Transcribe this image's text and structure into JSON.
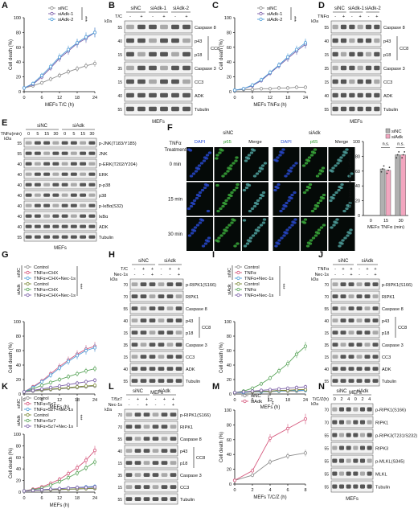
{
  "panels": [
    {
      "id": "A",
      "letter": "A",
      "kind": "line",
      "xlabel": "MEFs T/C (h)",
      "ylabel": "Cell death (%)",
      "legend": [
        "siNC",
        "siAdk-1",
        "siAdk-2"
      ],
      "sig": "***"
    },
    {
      "id": "B",
      "letter": "B",
      "kind": "blot",
      "sample": "MEFs",
      "treat_row": "T/C",
      "groups": [
        "siNC",
        "siAdk-1",
        "siAdk-2"
      ],
      "signs": [
        "-",
        "+",
        "-",
        "+",
        "-",
        "+"
      ],
      "bands": [
        "Caspase 8",
        "p43",
        "p18",
        "Caspase 3",
        "CC3",
        "ADK",
        "Tubulin"
      ],
      "bracket": "CC8",
      "kda": [
        "55",
        "40",
        "15",
        "35",
        "15",
        "40",
        "55"
      ]
    },
    {
      "id": "C",
      "letter": "C",
      "kind": "line",
      "xlabel": "MEFs TNFα (h)",
      "ylabel": "Cell death (%)",
      "legend": [
        "siNC",
        "siAdk-1",
        "siAdk-2"
      ],
      "sig": "***"
    },
    {
      "id": "D",
      "letter": "D",
      "kind": "blot",
      "sample": "MEFs",
      "treat_row": "TNFα",
      "groups": [
        "siNC",
        "siAdk-1",
        "siAdk-2"
      ],
      "signs": [
        "-",
        "+",
        "-",
        "+",
        "-",
        "+"
      ],
      "bands": [
        "Caspase 8",
        "p43",
        "p18",
        "Caspase 3",
        "CC3",
        "ADK",
        "Tubulin"
      ],
      "bracket": "CC8",
      "kda": [
        "55",
        "40",
        "15",
        "35",
        "15",
        "40",
        "55"
      ]
    },
    {
      "id": "E",
      "letter": "E",
      "kind": "blot",
      "sample": "MEFs",
      "treat_row": "TNFα(min)",
      "groups": [
        "siNC",
        "siAdk"
      ],
      "signs": [
        "0",
        "5",
        "15",
        "30",
        "0",
        "5",
        "15",
        "30"
      ],
      "bands": [
        "p-JNK(T183/Y185)",
        "JNK",
        "p-ERK(T202/Y204)",
        "ERK",
        "p-p38",
        "p38",
        "p-IκBα(S32)",
        "IκBα",
        "ADK",
        "Tubulin"
      ],
      "kda": [
        "55",
        "55",
        "40",
        "40",
        "40",
        "40",
        "40",
        "40",
        "40",
        "55"
      ]
    },
    {
      "id": "F",
      "letter": "F",
      "kind": "micro",
      "sample": "MEFs TNFα (min)",
      "treat": "TNFα Treatment",
      "groups": [
        "siNC",
        "siAdk"
      ],
      "channels": [
        "DAPI",
        "p65",
        "Merge"
      ],
      "rows": [
        "0 min",
        "15 min",
        "30 min"
      ],
      "bar_ylabel": "p65 translocation (% of cells)",
      "bar_legend": [
        "siNC",
        "siAdk"
      ],
      "bar_x": [
        "0",
        "15",
        "30"
      ],
      "ns": "n.s."
    },
    {
      "id": "G",
      "letter": "G",
      "kind": "line",
      "xlabel": "MEFs (h)",
      "ylabel": "Cell death (%)",
      "legend": [
        "Control",
        "TNFα+CHX",
        "TNFα+CHX+Nec-1s",
        "Control",
        "TNFα+CHX",
        "TNFα+CHX+Nec-1s"
      ],
      "groups": [
        "siNC",
        "siAdk"
      ],
      "sig": "***"
    },
    {
      "id": "H",
      "letter": "H",
      "kind": "blot",
      "sample": "MEFs",
      "treat_rows": [
        "T/C",
        "Nec-1s"
      ],
      "groups": [
        "siNC",
        "siAdk"
      ],
      "signs": [
        "-",
        "+",
        "+",
        "-",
        "+",
        "+"
      ],
      "signs2": [
        "-",
        "-",
        "+",
        "-",
        "-",
        "+"
      ],
      "bands": [
        "p-RIPK1(S166)",
        "RIPK1",
        "Caspase 8",
        "p43",
        "p18",
        "Caspase 3",
        "CC3",
        "ADK",
        "Tubulin"
      ],
      "bracket": "CC8",
      "kda": [
        "70",
        "70",
        "55",
        "40",
        "15",
        "35",
        "15",
        "40",
        "55"
      ]
    },
    {
      "id": "I",
      "letter": "I",
      "kind": "line",
      "xlabel": "MEFs (h)",
      "ylabel": "Cell death (%)",
      "legend": [
        "Control",
        "TNFα",
        "TNFα+Nec-1s",
        "Control",
        "TNFα",
        "TNFα+Nec-1s"
      ],
      "groups": [
        "siNC",
        "siAdk"
      ],
      "sig": "***"
    },
    {
      "id": "J",
      "letter": "J",
      "kind": "blot",
      "sample": "MEFs",
      "treat_rows": [
        "TNFα",
        "Nec-1s"
      ],
      "groups": [
        "siNC",
        "siAdk"
      ],
      "signs": [
        "-",
        "+",
        "+",
        "-",
        "+",
        "+"
      ],
      "signs2": [
        "-",
        "-",
        "+",
        "-",
        "-",
        "+"
      ],
      "bands": [
        "p-RIPK1(S166)",
        "RIPK1",
        "Caspase 8",
        "p43",
        "p18",
        "Caspase 3",
        "CC3",
        "ADK",
        "Tubulin"
      ],
      "bracket": "CC8",
      "kda": [
        "70",
        "70",
        "55",
        "40",
        "15",
        "35",
        "15",
        "40",
        "55"
      ]
    },
    {
      "id": "K",
      "letter": "K",
      "kind": "line",
      "xlabel": "MEFs (h)",
      "ylabel": "Cell death (%)",
      "legend": [
        "Control",
        "TNFα+5z7",
        "TNFα+5z7+Nec-1s",
        "Control",
        "TNFα+5z7",
        "TNFα+5z7+Nec-1s"
      ],
      "groups": [
        "siNC",
        "siAdk"
      ],
      "sig": "***"
    },
    {
      "id": "L",
      "letter": "L",
      "kind": "blot",
      "sample": "MEFs",
      "treat_rows": [
        "T/5z7",
        "Nec-1s"
      ],
      "groups": [
        "siNC",
        "siAdk"
      ],
      "signs": [
        "-",
        "+",
        "+",
        "-",
        "+",
        "+"
      ],
      "signs2": [
        "-",
        "-",
        "+",
        "-",
        "-",
        "+"
      ],
      "bands": [
        "p-RIPK1(S166)",
        "RIPK1",
        "Caspase 8",
        "p43",
        "p18",
        "Caspase 3",
        "CC3",
        "Tubulin"
      ],
      "bracket": "CC8",
      "kda": [
        "70",
        "70",
        "55",
        "40",
        "15",
        "35",
        "15",
        "55"
      ]
    },
    {
      "id": "M",
      "letter": "M",
      "kind": "line",
      "xlabel": "MEFs T/C/Z (h)",
      "ylabel": "Cell death (%)",
      "legend": [
        "siNC",
        "siAdk"
      ],
      "sig": "**"
    },
    {
      "id": "N",
      "letter": "N",
      "kind": "blot",
      "sample": "MEFs",
      "treat_row": "T/C/Z(h)",
      "groups": [
        "siNC",
        "siAdk"
      ],
      "signs": [
        "0",
        "2",
        "4",
        "0",
        "2",
        "4"
      ],
      "bands": [
        "p-RIPK1(S166)",
        "RIPK1",
        "p-RIPK3(T231/S232)",
        "RIPK3",
        "p-MLKL(S345)",
        "MLKL",
        "Tubulin"
      ],
      "kda": [
        "70",
        "70",
        "55",
        "55",
        "55",
        "55",
        "55"
      ]
    }
  ],
  "colors": {
    "grey": "#8c8c8c",
    "purple": "#7b5ea8",
    "blue": "#4f9ed9",
    "red": "#d5577c",
    "olive": "#7d8a3a",
    "green": "#5aa55a",
    "pink": "#f2a6bf",
    "barGrey": "#b0b0b0"
  },
  "chart_data": [
    {
      "panel": "A",
      "type": "line",
      "xlabel": "MEFs T/C (h)",
      "ylabel": "Cell death (%)",
      "x": [
        0,
        3,
        6,
        9,
        12,
        15,
        18,
        21,
        24
      ],
      "ylim": [
        0,
        100
      ],
      "series": [
        {
          "name": "siNC",
          "values": [
            5,
            8,
            12,
            17,
            22,
            27,
            31,
            35,
            38
          ]
        },
        {
          "name": "siAdk-1",
          "values": [
            5,
            10,
            20,
            32,
            45,
            55,
            65,
            72,
            80
          ]
        },
        {
          "name": "siAdk-2",
          "values": [
            5,
            11,
            22,
            34,
            47,
            57,
            66,
            74,
            80
          ]
        }
      ]
    },
    {
      "panel": "C",
      "type": "line",
      "xlabel": "MEFs TNFα (h)",
      "ylabel": "Cell death (%)",
      "x": [
        0,
        3,
        6,
        9,
        12,
        15,
        18,
        21,
        24
      ],
      "ylim": [
        0,
        100
      ],
      "series": [
        {
          "name": "siNC",
          "values": [
            2,
            3,
            3,
            4,
            4,
            5,
            5,
            6,
            6
          ]
        },
        {
          "name": "siAdk-1",
          "values": [
            2,
            4,
            8,
            15,
            25,
            35,
            45,
            55,
            64
          ]
        },
        {
          "name": "siAdk-2",
          "values": [
            2,
            4,
            9,
            16,
            26,
            36,
            47,
            57,
            66
          ]
        }
      ]
    },
    {
      "panel": "F",
      "type": "bar",
      "categories": [
        "0",
        "15",
        "30"
      ],
      "ylabel": "p65 translocation (% of cells)",
      "xlabel": "MEFs TNFα (min)",
      "ylim": [
        0,
        100
      ],
      "series": [
        {
          "name": "siNC",
          "values": [
            0,
            63,
            82
          ]
        },
        {
          "name": "siAdk",
          "values": [
            0,
            61,
            82
          ]
        }
      ]
    },
    {
      "panel": "G",
      "type": "line",
      "xlabel": "MEFs (h)",
      "ylabel": "Cell death (%)",
      "x": [
        0,
        3,
        6,
        9,
        12,
        15,
        18,
        21,
        24
      ],
      "ylim": [
        0,
        100
      ],
      "series": [
        {
          "name": "siNC Control",
          "values": [
            3,
            4,
            5,
            6,
            7,
            8,
            9,
            10,
            11
          ]
        },
        {
          "name": "siNC TNFα+CHX",
          "values": [
            3,
            10,
            18,
            28,
            38,
            47,
            55,
            62,
            66
          ]
        },
        {
          "name": "siNC TNFα+CHX+Nec-1s",
          "values": [
            3,
            9,
            17,
            26,
            36,
            45,
            53,
            60,
            64
          ]
        },
        {
          "name": "siAdk Control",
          "values": [
            3,
            5,
            6,
            7,
            8,
            9,
            10,
            11,
            12
          ]
        },
        {
          "name": "siAdk TNFα+CHX",
          "values": [
            3,
            7,
            12,
            16,
            20,
            24,
            28,
            32,
            35
          ]
        },
        {
          "name": "siAdk TNFα+CHX+Nec-1s",
          "values": [
            3,
            5,
            7,
            9,
            11,
            13,
            15,
            17,
            19
          ]
        }
      ]
    },
    {
      "panel": "I",
      "type": "line",
      "xlabel": "MEFs (h)",
      "ylabel": "Cell death (%)",
      "x": [
        0,
        3,
        6,
        9,
        12,
        15,
        18,
        21,
        24
      ],
      "ylim": [
        0,
        100
      ],
      "series": [
        {
          "name": "siNC Control",
          "values": [
            2,
            2,
            3,
            3,
            3,
            4,
            4,
            4,
            5
          ]
        },
        {
          "name": "siNC TNFα",
          "values": [
            2,
            3,
            3,
            4,
            4,
            5,
            5,
            6,
            6
          ]
        },
        {
          "name": "siNC TNFα+Nec-1s",
          "values": [
            2,
            2,
            3,
            3,
            4,
            4,
            5,
            5,
            5
          ]
        },
        {
          "name": "siAdk Control",
          "values": [
            2,
            3,
            3,
            4,
            4,
            5,
            5,
            6,
            6
          ]
        },
        {
          "name": "siAdk TNFα",
          "values": [
            2,
            4,
            8,
            14,
            22,
            32,
            42,
            55,
            66
          ]
        },
        {
          "name": "siAdk TNFα+Nec-1s",
          "values": [
            2,
            3,
            4,
            5,
            6,
            7,
            8,
            9,
            10
          ]
        }
      ]
    },
    {
      "panel": "K",
      "type": "line",
      "xlabel": "MEFs (h)",
      "ylabel": "Cell death (%)",
      "x": [
        0,
        3,
        6,
        9,
        12,
        15,
        18,
        21,
        24
      ],
      "ylim": [
        0,
        100
      ],
      "series": [
        {
          "name": "siNC Control",
          "values": [
            2,
            3,
            3,
            4,
            4,
            5,
            5,
            6,
            6
          ]
        },
        {
          "name": "siNC TNFα+5z7",
          "values": [
            2,
            5,
            9,
            15,
            22,
            32,
            42,
            55,
            72
          ]
        },
        {
          "name": "siNC TNFα+5z7+Nec-1s",
          "values": [
            2,
            3,
            4,
            5,
            6,
            7,
            8,
            9,
            10
          ]
        },
        {
          "name": "siAdk Control",
          "values": [
            2,
            3,
            4,
            4,
            5,
            5,
            6,
            6,
            7
          ]
        },
        {
          "name": "siAdk TNFα+5z7",
          "values": [
            2,
            4,
            7,
            12,
            18,
            25,
            33,
            42,
            52
          ]
        },
        {
          "name": "siAdk TNFα+5z7+Nec-1s",
          "values": [
            2,
            3,
            4,
            5,
            6,
            7,
            8,
            8,
            9
          ]
        }
      ]
    },
    {
      "panel": "M",
      "type": "line",
      "xlabel": "MEFs T/C/Z (h)",
      "ylabel": "Cell death (%)",
      "x": [
        0,
        2,
        4,
        6,
        8
      ],
      "ylim": [
        0,
        100
      ],
      "series": [
        {
          "name": "siNC",
          "values": [
            5,
            12,
            30,
            38,
            42
          ]
        },
        {
          "name": "siAdk",
          "values": [
            5,
            18,
            62,
            75,
            88
          ]
        }
      ]
    }
  ]
}
